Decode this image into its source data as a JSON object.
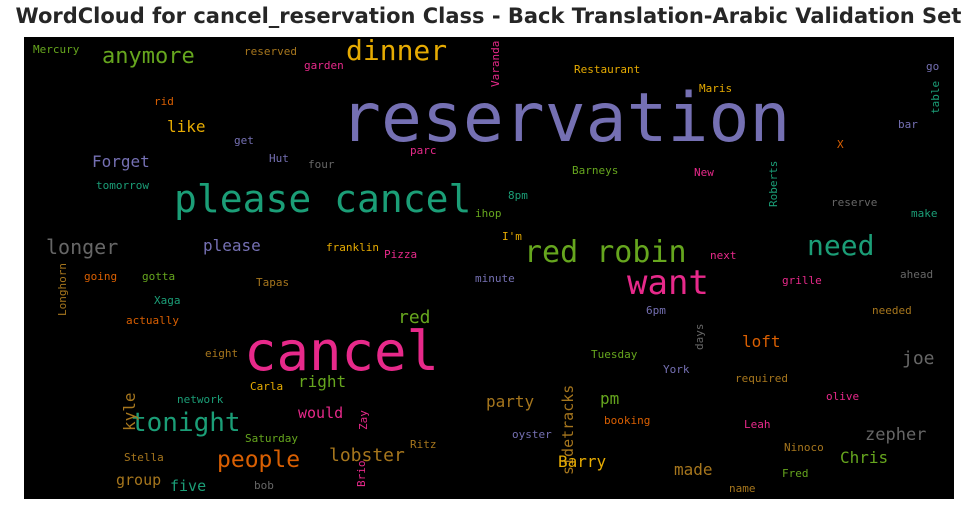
{
  "chart_data": {
    "type": "wordcloud",
    "title": "WordCloud for cancel_reservation Class - Back Translation-Arabic Validation Set",
    "background": "#000000",
    "words": [
      {
        "text": "reservation",
        "color": "#7570b3"
      },
      {
        "text": "cancel",
        "color": "#e7298a"
      },
      {
        "text": "please cancel",
        "color": "#1b9e77"
      },
      {
        "text": "want",
        "color": "#e7298a"
      },
      {
        "text": "red robin",
        "color": "#66a61e"
      },
      {
        "text": "dinner",
        "color": "#e6ab02"
      },
      {
        "text": "need",
        "color": "#1b9e77"
      },
      {
        "text": "tonight",
        "color": "#1b9e77"
      },
      {
        "text": "people",
        "color": "#d95f02"
      },
      {
        "text": "anymore",
        "color": "#66a61e"
      },
      {
        "text": "longer",
        "color": "#666666"
      },
      {
        "text": "lobster",
        "color": "#a6761d"
      },
      {
        "text": "sidetracks",
        "color": "#a6761d"
      },
      {
        "text": "joe",
        "color": "#666666"
      },
      {
        "text": "zepher",
        "color": "#666666"
      },
      {
        "text": "Barry",
        "color": "#e6ab02"
      },
      {
        "text": "Chris",
        "color": "#66a61e"
      },
      {
        "text": "red",
        "color": "#66a61e"
      },
      {
        "text": "like",
        "color": "#e6ab02"
      },
      {
        "text": "Forget",
        "color": "#7570b3"
      },
      {
        "text": "please",
        "color": "#7570b3"
      },
      {
        "text": "right",
        "color": "#66a61e"
      },
      {
        "text": "would",
        "color": "#e7298a"
      },
      {
        "text": "party",
        "color": "#a6761d"
      },
      {
        "text": "pm",
        "color": "#66a61e"
      },
      {
        "text": "loft",
        "color": "#d95f02"
      },
      {
        "text": "kyle",
        "color": "#a6761d"
      },
      {
        "text": "made",
        "color": "#a6761d"
      },
      {
        "text": "group",
        "color": "#a6761d"
      },
      {
        "text": "five",
        "color": "#1b9e77"
      },
      {
        "text": "Mercury",
        "color": "#66a61e"
      },
      {
        "text": "reserved",
        "color": "#a6761d"
      },
      {
        "text": "garden",
        "color": "#e7298a"
      },
      {
        "text": "Varanda",
        "color": "#e7298a"
      },
      {
        "text": "Restaurant",
        "color": "#e6ab02"
      },
      {
        "text": "go",
        "color": "#7570b3"
      },
      {
        "text": "Maris",
        "color": "#e6ab02"
      },
      {
        "text": "rid",
        "color": "#d95f02"
      },
      {
        "text": "table",
        "color": "#1b9e77"
      },
      {
        "text": "bar",
        "color": "#7570b3"
      },
      {
        "text": "get",
        "color": "#7570b3"
      },
      {
        "text": "X",
        "color": "#d95f02"
      },
      {
        "text": "parc",
        "color": "#e7298a"
      },
      {
        "text": "Hut",
        "color": "#7570b3"
      },
      {
        "text": "four",
        "color": "#666666"
      },
      {
        "text": "Barneys",
        "color": "#66a61e"
      },
      {
        "text": "New",
        "color": "#e7298a"
      },
      {
        "text": "Roberts",
        "color": "#1b9e77"
      },
      {
        "text": "tomorrow",
        "color": "#1b9e77"
      },
      {
        "text": "8pm",
        "color": "#1b9e77"
      },
      {
        "text": "ihop",
        "color": "#66a61e"
      },
      {
        "text": "reserve",
        "color": "#666666"
      },
      {
        "text": "make",
        "color": "#1b9e77"
      },
      {
        "text": "I'm",
        "color": "#e6ab02"
      },
      {
        "text": "franklin",
        "color": "#e6ab02"
      },
      {
        "text": "Pizza",
        "color": "#e7298a"
      },
      {
        "text": "next",
        "color": "#e7298a"
      },
      {
        "text": "going",
        "color": "#d95f02"
      },
      {
        "text": "gotta",
        "color": "#66a61e"
      },
      {
        "text": "Tapas",
        "color": "#a6761d"
      },
      {
        "text": "minute",
        "color": "#7570b3"
      },
      {
        "text": "grille",
        "color": "#e7298a"
      },
      {
        "text": "ahead",
        "color": "#666666"
      },
      {
        "text": "Longhorn",
        "color": "#a6761d"
      },
      {
        "text": "Xaga",
        "color": "#1b9e77"
      },
      {
        "text": "6pm",
        "color": "#7570b3"
      },
      {
        "text": "needed",
        "color": "#a6761d"
      },
      {
        "text": "actually",
        "color": "#d95f02"
      },
      {
        "text": "days",
        "color": "#666666"
      },
      {
        "text": "eight",
        "color": "#a6761d"
      },
      {
        "text": "Tuesday",
        "color": "#66a61e"
      },
      {
        "text": "York",
        "color": "#7570b3"
      },
      {
        "text": "required",
        "color": "#a6761d"
      },
      {
        "text": "Carla",
        "color": "#e6ab02"
      },
      {
        "text": "network",
        "color": "#1b9e77"
      },
      {
        "text": "olive",
        "color": "#e7298a"
      },
      {
        "text": "Zay",
        "color": "#e7298a"
      },
      {
        "text": "booking",
        "color": "#d95f02"
      },
      {
        "text": "Leah",
        "color": "#e7298a"
      },
      {
        "text": "Saturday",
        "color": "#66a61e"
      },
      {
        "text": "oyster",
        "color": "#7570b3"
      },
      {
        "text": "Ninoco",
        "color": "#a6761d"
      },
      {
        "text": "Ritz",
        "color": "#a6761d"
      },
      {
        "text": "Stella",
        "color": "#a6761d"
      },
      {
        "text": "Fred",
        "color": "#66a61e"
      },
      {
        "text": "bob",
        "color": "#666666"
      },
      {
        "text": "Brio",
        "color": "#e7298a"
      },
      {
        "text": "name",
        "color": "#a6761d"
      }
    ]
  }
}
